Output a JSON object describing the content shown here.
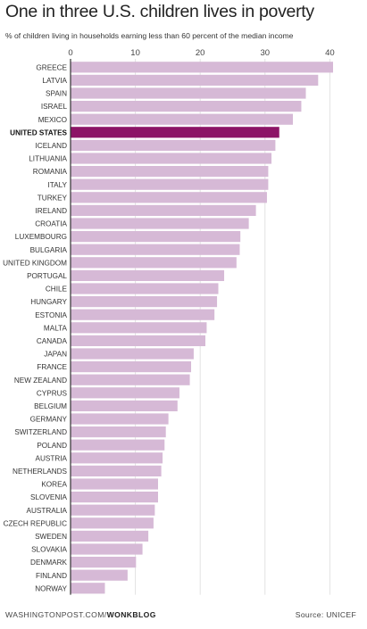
{
  "header": {
    "title": "One in three U.S. children lives in poverty",
    "subtitle": "% of children living in households earning less than 60 percent of the median income"
  },
  "footer": {
    "site": "WASHINGTONPOST.COM/",
    "section": "WONKBLOG",
    "source": "Source: UNICEF"
  },
  "colors": {
    "bar": "#d6b9d6",
    "highlight": "#8c1466",
    "gridline": "#e2e2e2",
    "axis": "#333333"
  },
  "chart_data": {
    "type": "bar",
    "orientation": "horizontal",
    "title": "One in three U.S. children lives in poverty",
    "xlabel": "% of children living in households earning less than 60 percent of the median income",
    "xlim": [
      0,
      40.5
    ],
    "xticks": [
      0,
      10,
      20,
      30,
      40
    ],
    "highlight": "UNITED STATES",
    "categories": [
      "GREECE",
      "LATVIA",
      "SPAIN",
      "ISRAEL",
      "MEXICO",
      "UNITED STATES",
      "ICELAND",
      "LITHUANIA",
      "ROMANIA",
      "ITALY",
      "TURKEY",
      "IRELAND",
      "CROATIA",
      "LUXEMBOURG",
      "BULGARIA",
      "UNITED KINGDOM",
      "PORTUGAL",
      "CHILE",
      "HUNGARY",
      "ESTONIA",
      "MALTA",
      "CANADA",
      "JAPAN",
      "FRANCE",
      "NEW ZEALAND",
      "CYPRUS",
      "BELGIUM",
      "GERMANY",
      "SWITZERLAND",
      "POLAND",
      "AUSTRIA",
      "NETHERLANDS",
      "KOREA",
      "SLOVENIA",
      "AUSTRALIA",
      "CZECH REPUBLIC",
      "SWEDEN",
      "SLOVAKIA",
      "DENMARK",
      "FINLAND",
      "NORWAY"
    ],
    "values": [
      40.5,
      38.2,
      36.3,
      35.6,
      34.3,
      32.2,
      31.6,
      31.0,
      30.5,
      30.5,
      30.3,
      28.6,
      27.5,
      26.2,
      26.1,
      25.6,
      23.7,
      22.8,
      22.6,
      22.2,
      21.0,
      20.8,
      19.0,
      18.6,
      18.4,
      16.8,
      16.5,
      15.1,
      14.7,
      14.5,
      14.2,
      14.0,
      13.5,
      13.5,
      13.0,
      12.8,
      12.0,
      11.1,
      10.1,
      8.8,
      5.3
    ]
  }
}
